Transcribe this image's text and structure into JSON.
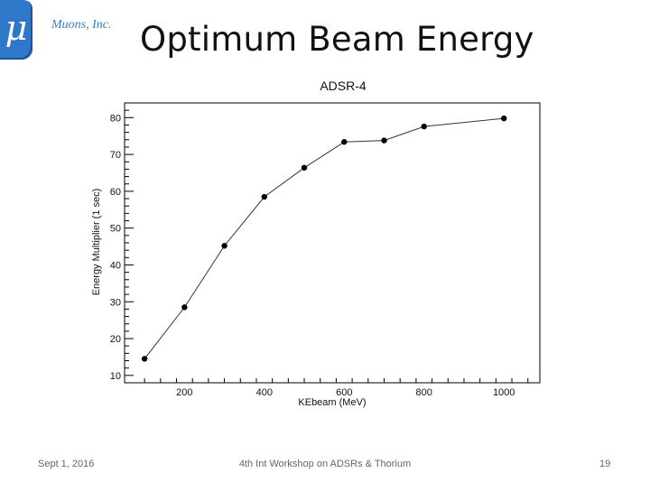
{
  "header": {
    "logo_glyph": "μ",
    "company": "Muons, Inc.",
    "title": "Optimum Beam Energy"
  },
  "footer": {
    "date": "Sept 1, 2016",
    "event": "4th Int Workshop on ADSRs & Thorium",
    "page": "19"
  },
  "chart_data": {
    "type": "line",
    "title": "ADSR-4",
    "xlabel": "KEbeam (MeV)",
    "ylabel": "Energy Multiplier (1 sec)",
    "xlim": [
      50,
      1090
    ],
    "ylim": [
      8,
      84
    ],
    "x_ticks": [
      200,
      400,
      600,
      800,
      1000
    ],
    "y_ticks": [
      10,
      20,
      30,
      40,
      50,
      60,
      70,
      80
    ],
    "grid": false,
    "series": [
      {
        "x": [
          100,
          200,
          300,
          400,
          500,
          600,
          700,
          800,
          1000
        ],
        "y": [
          14.5,
          28.5,
          45.2,
          58.5,
          66.4,
          73.4,
          73.8,
          77.6,
          79.8
        ]
      }
    ],
    "colors": {
      "line": "#333333",
      "marker": "#000000",
      "frame": "#000000"
    }
  }
}
